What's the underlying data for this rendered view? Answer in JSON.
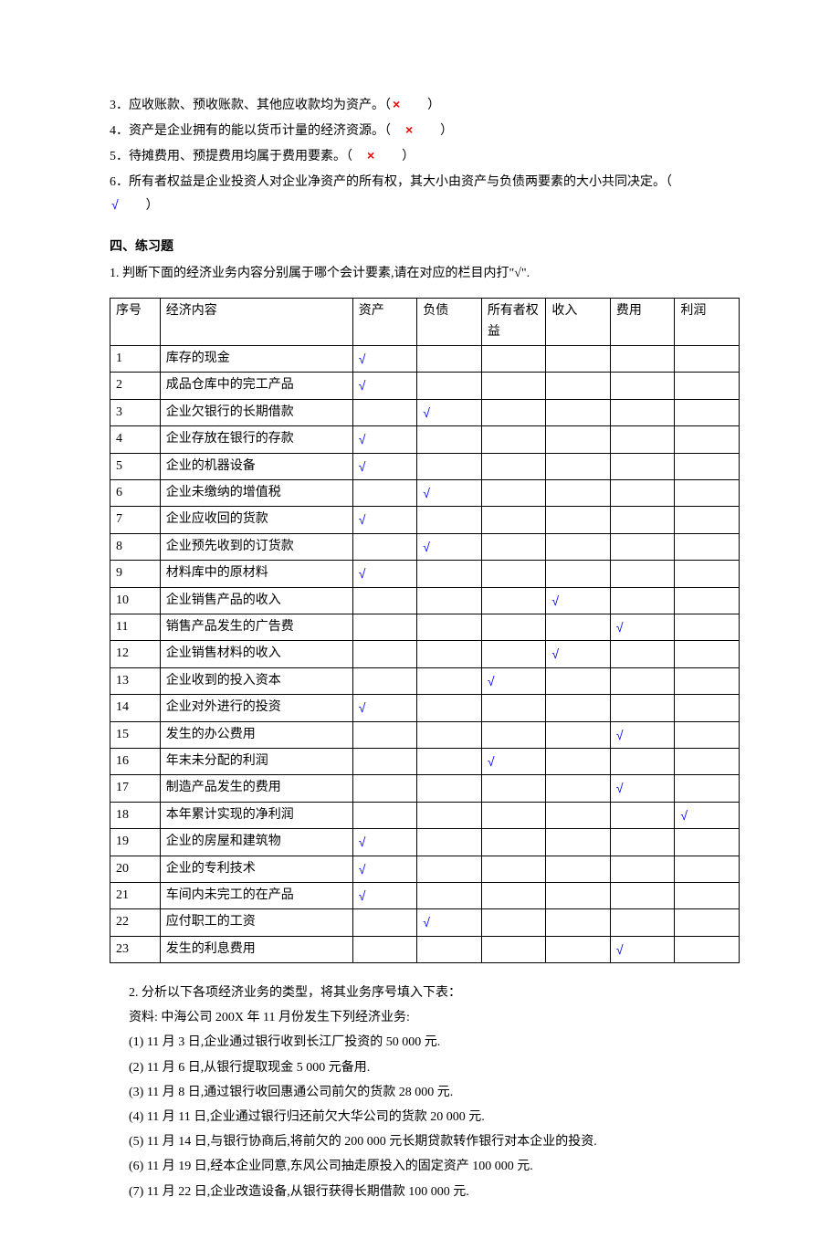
{
  "statements": [
    {
      "num": "3",
      "text_a": "．应收账款、预收账款、其他应收款均为资产。（",
      "mark": "×",
      "mark_class": "mark-x",
      "text_b": "　　）"
    },
    {
      "num": "4",
      "text_a": "．资产是企业拥有的能以货币计量的经济资源。（　",
      "mark": "×",
      "mark_class": "mark-x",
      "text_b": "　　）"
    },
    {
      "num": "5",
      "text_a": "．待摊费用、预提费用均属于费用要素。（　",
      "mark": "×",
      "mark_class": "mark-x",
      "text_b": "　　）"
    },
    {
      "num": "6",
      "text_a": "．所有者权益是企业投资人对企业净资产的所有权，其大小由资产与负债两要素的大小共同决定。（　　",
      "mark": "√",
      "mark_class": "mark-check",
      "text_b": "　　）"
    }
  ],
  "section4_title": "四、练习题",
  "q1_instr": "1. 判断下面的经济业务内容分别属于哪个会计要素,请在对应的栏目内打\"√\".",
  "tick": "√",
  "table": {
    "headers": [
      "序号",
      "经济内容",
      "资产",
      "负债",
      "所有者权益",
      "收入",
      "费用",
      "利润"
    ],
    "rows": [
      {
        "seq": "1",
        "content": "库存的现金",
        "marks": [
          "√",
          "",
          "",
          "",
          "",
          ""
        ]
      },
      {
        "seq": "2",
        "content": "成品仓库中的完工产品",
        "marks": [
          "√",
          "",
          "",
          "",
          "",
          ""
        ]
      },
      {
        "seq": "3",
        "content": "企业欠银行的长期借款",
        "marks": [
          "",
          "√",
          "",
          "",
          "",
          ""
        ]
      },
      {
        "seq": "4",
        "content": "企业存放在银行的存款",
        "marks": [
          "√",
          "",
          "",
          "",
          "",
          ""
        ]
      },
      {
        "seq": "5",
        "content": "企业的机器设备",
        "marks": [
          "√",
          "",
          "",
          "",
          "",
          ""
        ]
      },
      {
        "seq": "6",
        "content": "企业未缴纳的增值税",
        "marks": [
          "",
          "√",
          "",
          "",
          "",
          ""
        ]
      },
      {
        "seq": "7",
        "content": "企业应收回的货款",
        "marks": [
          "√",
          "",
          "",
          "",
          "",
          ""
        ]
      },
      {
        "seq": "8",
        "content": "企业预先收到的订货款",
        "marks": [
          "",
          "√",
          "",
          "",
          "",
          ""
        ]
      },
      {
        "seq": "9",
        "content": "材料库中的原材料",
        "marks": [
          "√",
          "",
          "",
          "",
          "",
          ""
        ]
      },
      {
        "seq": "10",
        "content": "企业销售产品的收入",
        "marks": [
          "",
          "",
          "",
          "√",
          "",
          ""
        ]
      },
      {
        "seq": "11",
        "content": "销售产品发生的广告费",
        "marks": [
          "",
          "",
          "",
          "",
          "√",
          ""
        ]
      },
      {
        "seq": "12",
        "content": "企业销售材料的收入",
        "marks": [
          "",
          "",
          "",
          "√",
          "",
          ""
        ]
      },
      {
        "seq": "13",
        "content": "企业收到的投入资本",
        "marks": [
          "",
          "",
          "√",
          "",
          "",
          ""
        ]
      },
      {
        "seq": "14",
        "content": "企业对外进行的投资",
        "marks": [
          "√",
          "",
          "",
          "",
          "",
          ""
        ]
      },
      {
        "seq": "15",
        "content": "发生的办公费用",
        "marks": [
          "",
          "",
          "",
          "",
          "√",
          ""
        ]
      },
      {
        "seq": "16",
        "content": "年末未分配的利润",
        "marks": [
          "",
          "",
          "√",
          "",
          "",
          ""
        ]
      },
      {
        "seq": "17",
        "content": "制造产品发生的费用",
        "marks": [
          "",
          "",
          "",
          "",
          "√",
          ""
        ]
      },
      {
        "seq": "18",
        "content": "本年累计实现的净利润",
        "marks": [
          "",
          "",
          "",
          "",
          "",
          "√"
        ]
      },
      {
        "seq": "19",
        "content": "企业的房屋和建筑物",
        "marks": [
          "√",
          "",
          "",
          "",
          "",
          ""
        ]
      },
      {
        "seq": "20",
        "content": "企业的专利技术",
        "marks": [
          "√",
          "",
          "",
          "",
          "",
          ""
        ]
      },
      {
        "seq": "21",
        "content": "车间内未完工的在产品",
        "marks": [
          "√",
          "",
          "",
          "",
          "",
          ""
        ]
      },
      {
        "seq": "22",
        "content": "应付职工的工资",
        "marks": [
          "",
          "√",
          "",
          "",
          "",
          ""
        ]
      },
      {
        "seq": "23",
        "content": "发生的利息费用",
        "marks": [
          "",
          "",
          "",
          "",
          "√",
          ""
        ]
      }
    ]
  },
  "q2": {
    "intro": "2. 分析以下各项经济业务的类型，将其业务序号填入下表：",
    "material": "资料: 中海公司 200X 年 11 月份发生下列经济业务:",
    "items": [
      "(1) 11 月 3 日,企业通过银行收到长江厂投资的 50 000 元.",
      "(2) 11 月 6 日,从银行提取现金 5 000 元备用.",
      "(3) 11 月 8 日,通过银行收回惠通公司前欠的货款 28 000 元.",
      "(4) 11 月 11 日,企业通过银行归还前欠大华公司的货款 20 000 元.",
      "(5) 11 月 14 日,与银行协商后,将前欠的 200 000 元长期贷款转作银行对本企业的投资.",
      "(6) 11 月 19 日,经本企业同意,东风公司抽走原投入的固定资产 100 000 元.",
      "(7) 11 月 22 日,企业改造设备,从银行获得长期借款 100 000 元."
    ]
  }
}
